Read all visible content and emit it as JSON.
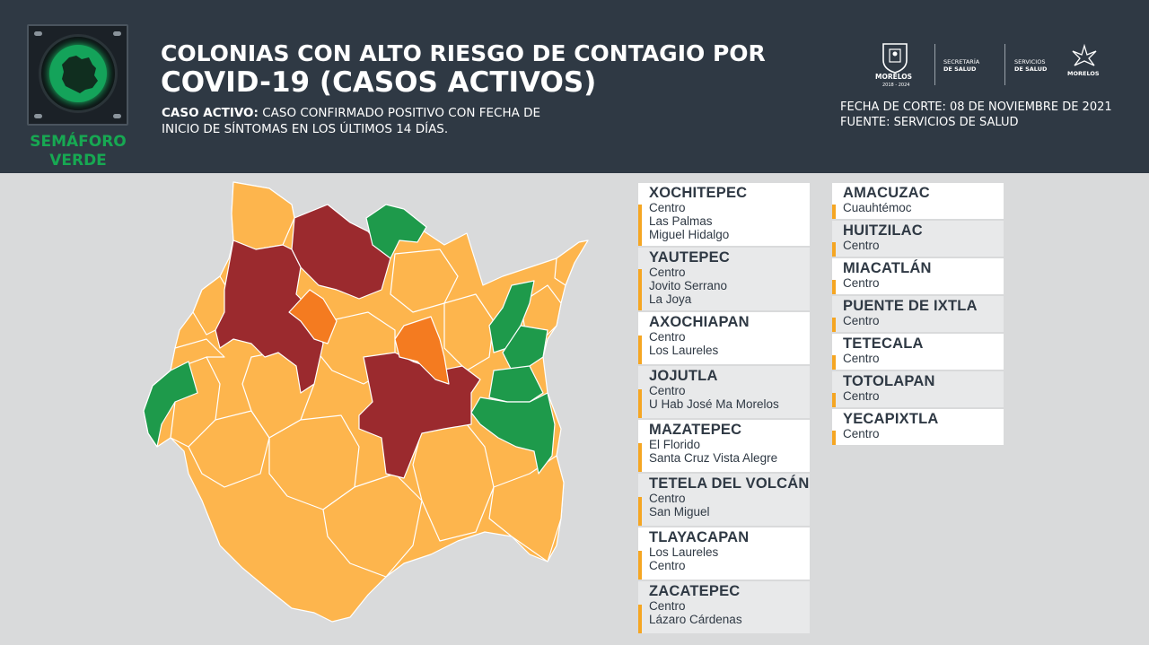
{
  "header": {
    "badge_label_1": "SEMÁFORO",
    "badge_label_2": "VERDE",
    "title_line1": "COLONIAS CON ALTO RIESGO DE CONTAGIO POR",
    "title_line2": "COVID-19 (CASOS ACTIVOS)",
    "definition_label": "CASO ACTIVO:",
    "definition_text_1": " CASO CONFIRMADO POSITIVO CON FECHA DE",
    "definition_text_2": "INICIO DE SÍNTOMAS EN LOS ÚLTIMOS 14 DÍAS.",
    "fecha_corte": "FECHA DE CORTE: 08 DE NOVIEMBRE DE 2021",
    "fuente": "FUENTE: SERVICIOS DE SALUD",
    "logos": {
      "morelos": "MORELOS",
      "morelos_years": "2018 - 2024",
      "secretaria_1": "SECRETARÍA",
      "secretaria_2": "DE SALUD",
      "servicios_1": "SERVICIOS",
      "servicios_2": "DE SALUD",
      "morelos_2": "MORELOS"
    }
  },
  "colors": {
    "header_bg": "#2f3944",
    "semaforo_green": "#17a852",
    "map_green": "#1e9a4b",
    "map_yellow": "#fdb54d",
    "map_orange": "#f47b20",
    "map_red": "#9b2a2e",
    "card_accent": "#f5a623"
  },
  "municipalities_left": [
    {
      "name": "XOCHITEPEC",
      "colonias": [
        "Centro",
        "Las Palmas",
        "Miguel Hidalgo"
      ]
    },
    {
      "name": "YAUTEPEC",
      "colonias": [
        "Centro",
        "Jovito Serrano",
        "La Joya"
      ]
    },
    {
      "name": "AXOCHIAPAN",
      "colonias": [
        "Centro",
        "Los Laureles"
      ]
    },
    {
      "name": "JOJUTLA",
      "colonias": [
        "Centro",
        "U Hab José Ma Morelos"
      ]
    },
    {
      "name": "MAZATEPEC",
      "colonias": [
        "El Florido",
        "Santa Cruz Vista Alegre"
      ]
    },
    {
      "name": "TETELA DEL VOLCÁN",
      "colonias": [
        "Centro",
        "San Miguel"
      ]
    },
    {
      "name": "TLAYACAPAN",
      "colonias": [
        "Los Laureles",
        "Centro"
      ]
    },
    {
      "name": "ZACATEPEC",
      "colonias": [
        "Centro",
        "Lázaro Cárdenas"
      ]
    }
  ],
  "municipalities_right": [
    {
      "name": "AMACUZAC",
      "colonias": [
        "Cuauhtémoc"
      ]
    },
    {
      "name": "HUITZILAC",
      "colonias": [
        "Centro"
      ]
    },
    {
      "name": "MIACATLÁN",
      "colonias": [
        "Centro"
      ]
    },
    {
      "name": "PUENTE DE IXTLA",
      "colonias": [
        "Centro"
      ]
    },
    {
      "name": "TETECALA",
      "colonias": [
        "Centro"
      ]
    },
    {
      "name": "TOTOLAPAN",
      "colonias": [
        "Centro"
      ]
    },
    {
      "name": "YECAPIXTLA",
      "colonias": [
        "Centro"
      ]
    }
  ]
}
